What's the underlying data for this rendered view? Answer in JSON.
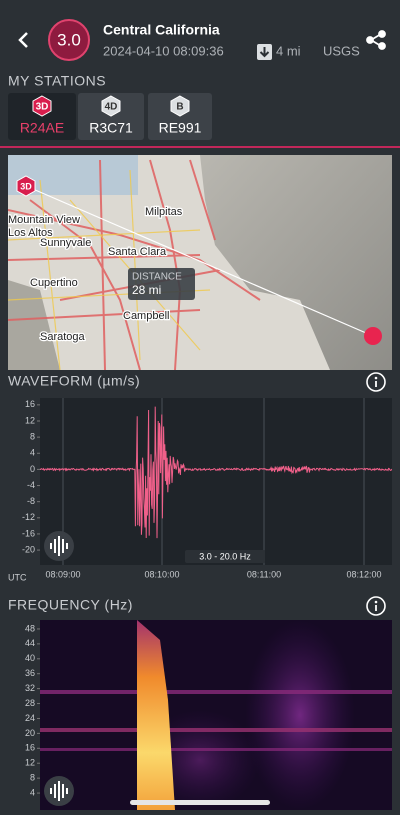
{
  "header": {
    "magnitude": "3.0",
    "title": "Central California",
    "datetime": "2024-04-10 08:09:36",
    "distance": "4 mi",
    "source": "USGS"
  },
  "stations": {
    "heading": "MY STATIONS",
    "items": [
      {
        "badge": "3D",
        "name": "R24AE",
        "selected": true
      },
      {
        "badge": "4D",
        "name": "R3C71",
        "selected": false
      },
      {
        "badge": "B",
        "name": "RE991",
        "selected": false
      }
    ]
  },
  "map": {
    "labels": [
      "Milpitas",
      "Mountain View",
      "Los Altos",
      "Sunnyvale",
      "Santa Clara",
      "Cupertino",
      "Campbell",
      "Saratoga"
    ],
    "distance_label": "DISTANCE",
    "distance": "28 mi",
    "station_badge": "3D"
  },
  "waveform": {
    "title": "WAVEFORM (µm/s)",
    "ylim": [
      -23.7,
      17.7
    ],
    "yticks": [
      16,
      12,
      8,
      4,
      0,
      -4,
      -8,
      -12,
      -16,
      -20
    ],
    "xticks": [
      "08:09:00",
      "08:10:00",
      "08:11:00",
      "08:12:00"
    ],
    "x_unit": "UTC",
    "filter": "3.0 - 20.0 Hz"
  },
  "frequency": {
    "title": "FREQUENCY (Hz)",
    "ylim": [
      0.8,
      50.4
    ],
    "yticks": [
      48,
      44,
      40,
      36,
      32,
      28,
      24,
      20,
      16,
      12,
      8,
      4
    ]
  }
}
